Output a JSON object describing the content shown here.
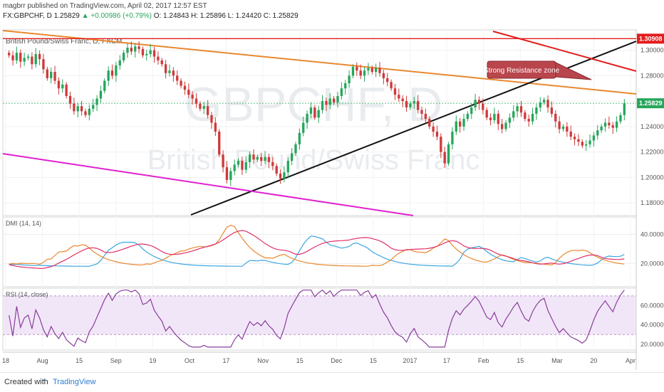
{
  "header": {
    "published_line": "magbrr published on TradingView.com, April 02, 2017 12:57 EST",
    "symbol": "FX:GBPCHF, D",
    "last": "1.25829",
    "change": "+0.00986 (+0.79%)",
    "ohlc": "O: 1.24843 H: 1.25896 L: 1.24420 C: 1.25829"
  },
  "chart_data": {
    "type": "candlestick",
    "title": "British Pound/Swiss Franc, D, FXCM",
    "watermark_symbol": "GBPCHF, D",
    "watermark_name": "British Pound/Swiss Franc",
    "price_axis_ticks": [
      "1.30000",
      "1.28000",
      "1.26000",
      "1.24000",
      "1.22000",
      "1.20000",
      "1.18000"
    ],
    "price_range": [
      1.17,
      1.316
    ],
    "last_price_label": "1.25829",
    "resistance_price_label": "1.30908",
    "x_axis_labels": [
      "18",
      "Aug",
      "15",
      "Sep",
      "19",
      "Oct",
      "17",
      "Nov",
      "15",
      "Dec",
      "15",
      "2017",
      "17",
      "Feb",
      "15",
      "Mar",
      "20",
      "Apr"
    ],
    "annotation": "Strong Resistance zone",
    "closes": [
      1.296,
      1.292,
      1.298,
      1.291,
      1.294,
      1.295,
      1.289,
      1.297,
      1.293,
      1.285,
      1.278,
      1.283,
      1.276,
      1.27,
      1.273,
      1.264,
      1.258,
      1.252,
      1.256,
      1.252,
      1.249,
      1.254,
      1.257,
      1.262,
      1.268,
      1.276,
      1.284,
      1.28,
      1.288,
      1.292,
      1.298,
      1.302,
      1.299,
      1.303,
      1.301,
      1.296,
      1.297,
      1.3,
      1.295,
      1.292,
      1.289,
      1.282,
      1.284,
      1.28,
      1.276,
      1.272,
      1.269,
      1.265,
      1.262,
      1.258,
      1.254,
      1.256,
      1.249,
      1.243,
      1.236,
      1.218,
      1.208,
      1.198,
      1.205,
      1.21,
      1.213,
      1.206,
      1.212,
      1.218,
      1.214,
      1.216,
      1.213,
      1.216,
      1.212,
      1.209,
      1.203,
      1.199,
      1.204,
      1.213,
      1.219,
      1.226,
      1.235,
      1.243,
      1.25,
      1.255,
      1.247,
      1.253,
      1.26,
      1.257,
      1.262,
      1.259,
      1.264,
      1.27,
      1.274,
      1.28,
      1.287,
      1.284,
      1.28,
      1.284,
      1.286,
      1.283,
      1.286,
      1.282,
      1.278,
      1.275,
      1.27,
      1.265,
      1.262,
      1.26,
      1.255,
      1.258,
      1.26,
      1.253,
      1.25,
      1.246,
      1.24,
      1.236,
      1.232,
      1.22,
      1.211,
      1.226,
      1.236,
      1.244,
      1.24,
      1.246,
      1.25,
      1.255,
      1.261,
      1.258,
      1.253,
      1.247,
      1.245,
      1.25,
      1.242,
      1.238,
      1.243,
      1.247,
      1.252,
      1.256,
      1.251,
      1.246,
      1.244,
      1.25,
      1.255,
      1.259,
      1.261,
      1.255,
      1.25,
      1.244,
      1.238,
      1.24,
      1.236,
      1.232,
      1.23,
      1.228,
      1.225,
      1.226,
      1.229,
      1.233,
      1.237,
      1.24,
      1.243,
      1.241,
      1.239,
      1.244,
      1.249,
      1.2583
    ],
    "resistance_line_price": 1.3091,
    "last_price": 1.2583,
    "dmi": {
      "label": "DMI (14, 14)",
      "ticks": [
        "40.0000",
        "20.0000"
      ],
      "range": [
        4,
        52
      ]
    },
    "rsi": {
      "label": "RSI (14, close)",
      "ticks": [
        "60.0000",
        "40.0000",
        "20.0000"
      ],
      "range": [
        14,
        78
      ],
      "band": [
        30,
        70
      ]
    },
    "colors": {
      "up": "#26a65b",
      "down": "#cf3a3a",
      "orange_trend": "#e8882f",
      "black_trend": "#111111",
      "magenta_trend": "#e020d0",
      "red_line": "#e41c1c",
      "dmi_plus": "#3ba6e0",
      "dmi_minus": "#e8882f",
      "adx": "#e0306a",
      "rsi": "#8a3c9c",
      "rsi_band": "#f1e6f7"
    }
  },
  "footer": {
    "created_with": "Created with",
    "brand": "TradingView"
  }
}
